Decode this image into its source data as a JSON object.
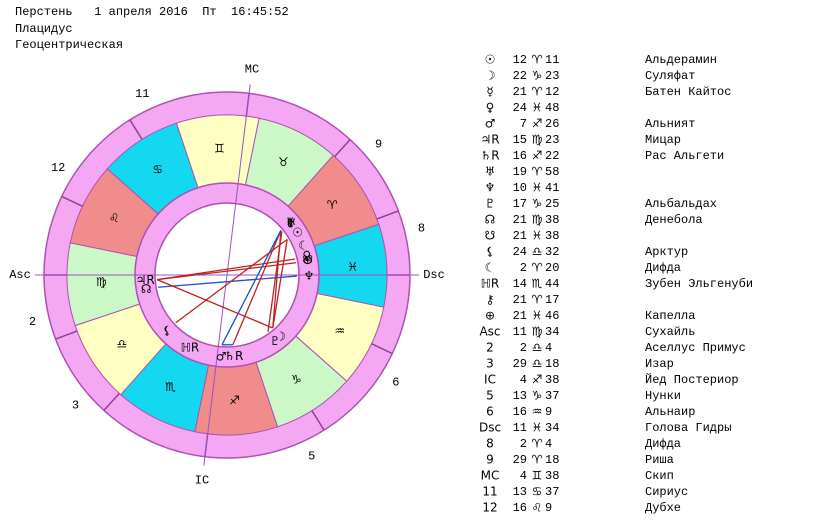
{
  "header": {
    "lines": [
      "Перстень   1 апреля 2016  Пт  16:45:52",
      "Плацидус",
      "Геоцентрическая"
    ]
  },
  "wheel": {
    "signs": [
      "♈",
      "♉",
      "♊",
      "♋",
      "♌",
      "♍",
      "♎",
      "♏",
      "♐",
      "♑",
      "♒",
      "♓"
    ]
  },
  "table": {
    "rows": [
      {
        "symbol": "☉",
        "degree": 12,
        "sign": "♈",
        "minute": 11,
        "name": "Альдерамин"
      },
      {
        "symbol": "☽",
        "degree": 22,
        "sign": "♑",
        "minute": 23,
        "name": "Суляфат"
      },
      {
        "symbol": "☿",
        "degree": 21,
        "sign": "♈",
        "minute": 12,
        "name": "Батен Кайтос"
      },
      {
        "symbol": "♀",
        "degree": 24,
        "sign": "♓",
        "minute": 48
      },
      {
        "symbol": "♂",
        "degree": 7,
        "sign": "♐",
        "minute": 26,
        "name": "Альният"
      },
      {
        "symbol": "♃R",
        "degree": 15,
        "sign": "♍",
        "minute": 23,
        "name": "Мицар"
      },
      {
        "symbol": "♄R",
        "degree": 16,
        "sign": "♐",
        "minute": 22,
        "name": "Рас Альгети"
      },
      {
        "symbol": "♅",
        "degree": 19,
        "sign": "♈",
        "minute": 58
      },
      {
        "symbol": "♆",
        "degree": 10,
        "sign": "♓",
        "minute": 41
      },
      {
        "symbol": "♇",
        "degree": 17,
        "sign": "♑",
        "minute": 25,
        "name": "Альбальдах"
      },
      {
        "symbol": "☊",
        "degree": 21,
        "sign": "♍",
        "minute": 38,
        "name": "Денебола"
      },
      {
        "symbol": "☋",
        "degree": 21,
        "sign": "♓",
        "minute": 38
      },
      {
        "symbol": "⚸",
        "degree": 24,
        "sign": "♎",
        "minute": 32,
        "name": "Арктур"
      },
      {
        "symbol": "☾",
        "degree": 2,
        "sign": "♈",
        "minute": 20,
        "name": "Дифда"
      },
      {
        "symbol": "ℍR",
        "degree": 14,
        "sign": "♏",
        "minute": 44,
        "name": "Зубен Эльгенуби"
      },
      {
        "symbol": "⚷",
        "degree": 21,
        "sign": "♈",
        "minute": 17
      },
      {
        "symbol": "⊕",
        "degree": 21,
        "sign": "♓",
        "minute": 46,
        "name": "Капелла"
      },
      {
        "symbol": "Asc",
        "degree": 11,
        "sign": "♍",
        "minute": 34,
        "name": "Сухайль"
      },
      {
        "symbol": "2",
        "degree": 2,
        "sign": "♎",
        "minute": 4,
        "name": "Аселлус Примус"
      },
      {
        "symbol": "3",
        "degree": 29,
        "sign": "♎",
        "minute": 18,
        "name": "Изар"
      },
      {
        "symbol": "IC",
        "degree": 4,
        "sign": "♐",
        "minute": 38,
        "name": "Йед Постериор"
      },
      {
        "symbol": "5",
        "degree": 13,
        "sign": "♑",
        "minute": 37,
        "name": "Нунки"
      },
      {
        "symbol": "6",
        "degree": 16,
        "sign": "♒",
        "minute": 9,
        "name": "Альнаир"
      },
      {
        "symbol": "Dsc",
        "degree": 11,
        "sign": "♓",
        "minute": 34,
        "name": "Голова Гидры"
      },
      {
        "symbol": "8",
        "degree": 2,
        "sign": "♈",
        "minute": 4,
        "name": "Дифда"
      },
      {
        "symbol": "9",
        "degree": 29,
        "sign": "♈",
        "minute": 18,
        "name": "Риша"
      },
      {
        "symbol": "MC",
        "degree": 4,
        "sign": "♊",
        "minute": 38,
        "name": "Скип"
      },
      {
        "symbol": "11",
        "degree": 13,
        "sign": "♋",
        "minute": 37,
        "name": "Сириус"
      },
      {
        "symbol": "12",
        "degree": 16,
        "sign": "♌",
        "minute": 9,
        "name": "Дубхе"
      }
    ]
  }
}
